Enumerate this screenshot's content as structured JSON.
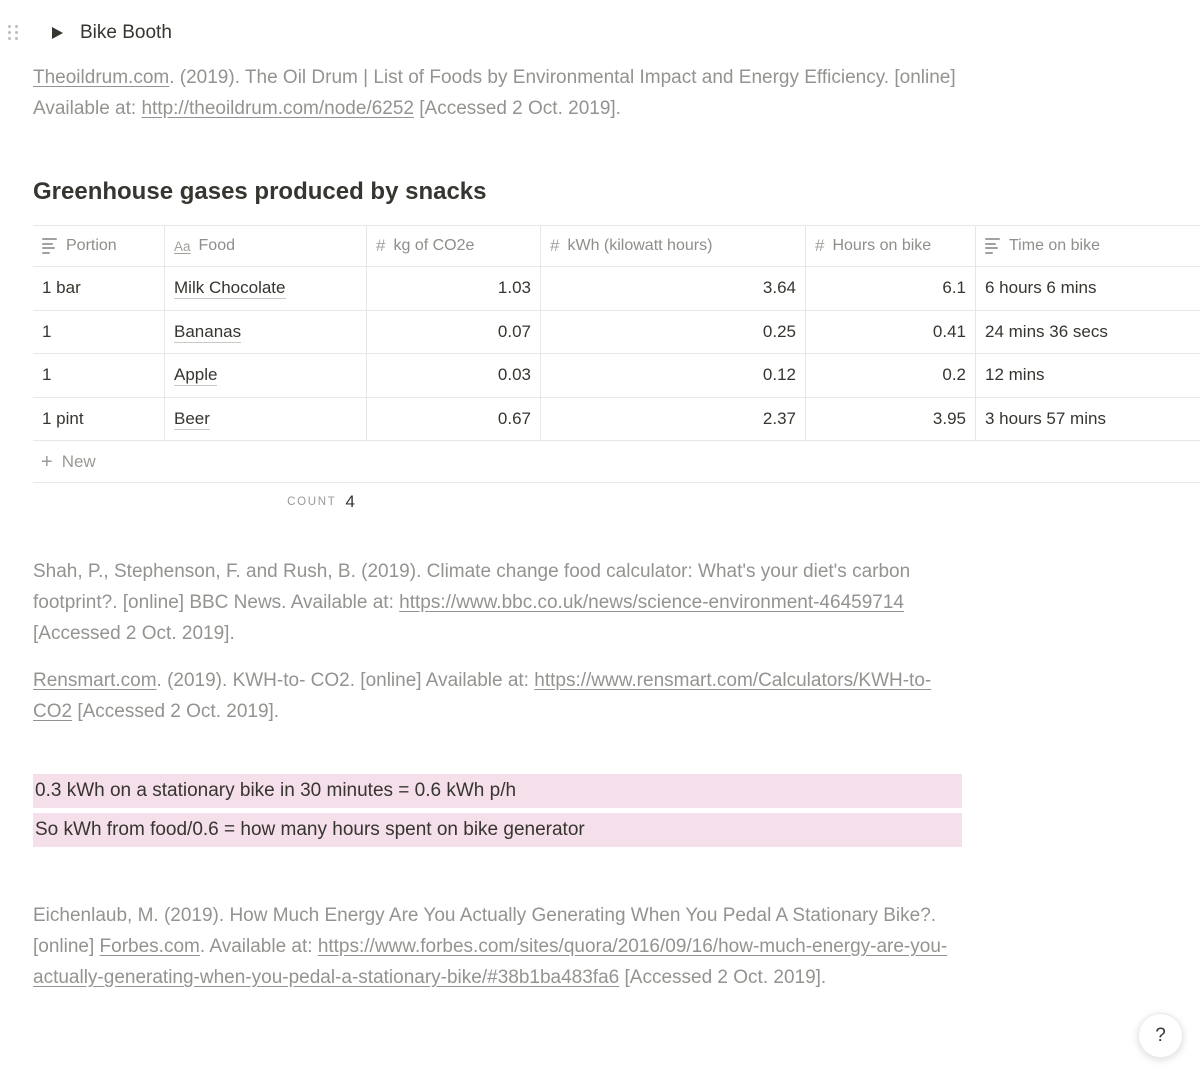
{
  "colors": {
    "highlight_pink": "#f4dfeb",
    "text_dark": "#37352f",
    "text_grey": "#95938f"
  },
  "toggle": {
    "title": "Bike Booth"
  },
  "heading": "Greenhouse gases produced by snacks",
  "citations": {
    "oildrum": [
      {
        "text": "Theoildrum.com",
        "link": true
      },
      {
        "text": ". (2019). The Oil Drum | List of Foods by Environmental Impact and Energy Efficiency. [online] Available at: "
      },
      {
        "text": "http://theoildrum.com/node/6252",
        "link": true
      },
      {
        "text": " [Accessed 2 Oct. 2019]."
      }
    ],
    "shah": [
      {
        "text": "Shah, P., Stephenson, F. and Rush, B. (2019). Climate change food calculator: What's your diet's carbon footprint?. [online] BBC News. Available at: "
      },
      {
        "text": "https://www.bbc.co.uk/news/science-environment-46459714",
        "link": true
      },
      {
        "text": " [Accessed 2 Oct. 2019]."
      }
    ],
    "rensmart": [
      {
        "text": "Rensmart.com",
        "link": true
      },
      {
        "text": ". (2019). KWH-to- CO2. [online] Available at: "
      },
      {
        "text": "https://www.rensmart.com/Calculators/KWH-to-CO2",
        "link": true
      },
      {
        "text": " [Accessed 2 Oct. 2019]."
      }
    ],
    "eichenlaub": [
      {
        "text": "Eichenlaub, M. (2019). How Much Energy Are You Actually Generating When You Pedal A Stationary Bike?. [online] "
      },
      {
        "text": "Forbes.com",
        "link": true
      },
      {
        "text": ". Available at: "
      },
      {
        "text": "https://www.forbes.com/sites/quora/2016/09/16/how-much-energy-are-you-actually-generating-when-you-pedal-a-stationary-bike/#38b1ba483fa6",
        "link": true
      },
      {
        "text": " [Accessed 2 Oct. 2019]."
      }
    ]
  },
  "icons": {
    "title": "Aa",
    "number": "#",
    "plus": "+"
  },
  "table": {
    "columns": [
      {
        "label": "Portion",
        "type": "text",
        "align": "left"
      },
      {
        "label": "Food",
        "type": "title",
        "align": "left"
      },
      {
        "label": "kg of CO2e",
        "type": "number",
        "align": "right"
      },
      {
        "label": "kWh (kilowatt hours)",
        "type": "number",
        "align": "right"
      },
      {
        "label": "Hours on bike",
        "type": "number",
        "align": "right"
      },
      {
        "label": "Time on bike",
        "type": "text",
        "align": "left"
      }
    ],
    "rows": [
      [
        "1 bar",
        "Milk Chocolate",
        "1.03",
        "3.64",
        "6.1",
        "6 hours 6 mins"
      ],
      [
        "1",
        "Bananas",
        "0.07",
        "0.25",
        "0.41",
        "24 mins 36 secs"
      ],
      [
        "1",
        "Apple",
        "0.03",
        "0.12",
        "0.2",
        "12 mins"
      ],
      [
        "1 pint",
        "Beer",
        "0.67",
        "2.37",
        "3.95",
        "3 hours 57 mins"
      ]
    ],
    "new_row_label": "New",
    "calc": {
      "label": "COUNT",
      "value": "4"
    }
  },
  "highlights": [
    "0.3 kWh on a stationary bike in 30 minutes = 0.6 kWh p/h",
    "So kWh from food/0.6 = how many hours spent on bike generator"
  ],
  "help_button": {
    "label": "?"
  }
}
